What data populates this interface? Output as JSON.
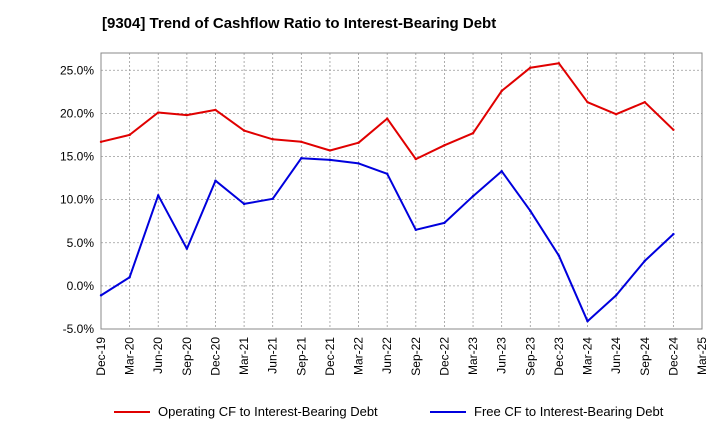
{
  "chart_data": {
    "type": "line",
    "title": "[9304]  Trend of Cashflow Ratio to Interest-Bearing Debt",
    "x": [
      "Dec-19",
      "Mar-20",
      "Jun-20",
      "Sep-20",
      "Dec-20",
      "Mar-21",
      "Jun-21",
      "Sep-21",
      "Dec-21",
      "Mar-22",
      "Jun-22",
      "Sep-22",
      "Dec-22",
      "Mar-23",
      "Jun-23",
      "Sep-23",
      "Dec-23",
      "Mar-24",
      "Jun-24",
      "Sep-24",
      "Dec-24",
      "Mar-25"
    ],
    "yticks": [
      -5,
      0,
      5,
      10,
      15,
      20,
      25
    ],
    "ytick_labels": [
      "-5.0%",
      "0.0%",
      "5.0%",
      "10.0%",
      "15.0%",
      "20.0%",
      "25.0%"
    ],
    "ylim": [
      -5,
      27
    ],
    "grid": true,
    "legend_position": "bottom",
    "series": [
      {
        "name": "Operating CF to Interest-Bearing Debt",
        "color": "#e00000",
        "values": [
          16.7,
          17.5,
          20.1,
          19.8,
          20.4,
          18.0,
          17.0,
          16.7,
          15.7,
          16.6,
          19.4,
          14.7,
          16.3,
          17.7,
          22.6,
          25.3,
          25.8,
          21.3,
          19.9,
          21.3,
          18.1,
          null
        ]
      },
      {
        "name": "Free CF to Interest-Bearing Debt",
        "color": "#0000dd",
        "values": [
          -1.1,
          1.0,
          10.5,
          4.3,
          12.2,
          9.5,
          10.1,
          14.8,
          14.6,
          14.2,
          13.0,
          6.5,
          7.3,
          10.4,
          13.3,
          8.7,
          3.5,
          -4.1,
          -1.1,
          2.9,
          6.0,
          null
        ]
      }
    ]
  }
}
